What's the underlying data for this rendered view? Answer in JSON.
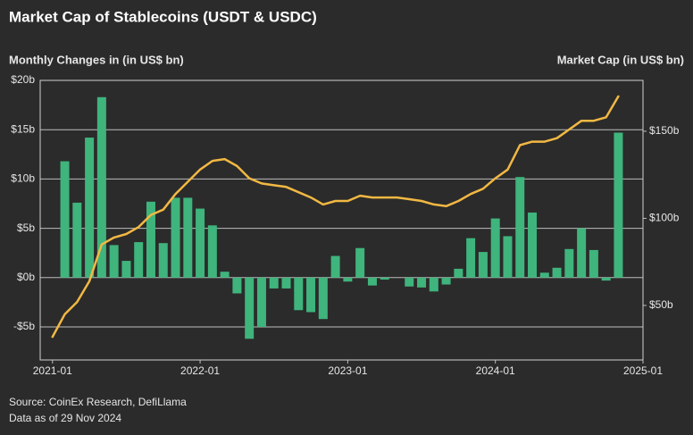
{
  "chart_data": {
    "type": "bar",
    "title": "Market Cap of Stablecoins (USDT & USDC)",
    "y_label": "Monthly Changes in (in US$ bn)",
    "y2_label": "Market Cap (in US$ bn)",
    "source": "Source: CoinEx Research, DefiLlama",
    "note": "Data as of 29 Nov 2024",
    "x": [
      "2021-01",
      "2021-02",
      "2021-03",
      "2021-04",
      "2021-05",
      "2021-06",
      "2021-07",
      "2021-08",
      "2021-09",
      "2021-10",
      "2021-11",
      "2021-12",
      "2022-01",
      "2022-02",
      "2022-03",
      "2022-04",
      "2022-05",
      "2022-06",
      "2022-07",
      "2022-08",
      "2022-09",
      "2022-10",
      "2022-11",
      "2022-12",
      "2023-01",
      "2023-02",
      "2023-03",
      "2023-04",
      "2023-05",
      "2023-06",
      "2023-07",
      "2023-08",
      "2023-09",
      "2023-10",
      "2023-11",
      "2023-12",
      "2024-01",
      "2024-02",
      "2024-03",
      "2024-04",
      "2024-05",
      "2024-06",
      "2024-07",
      "2024-08",
      "2024-09",
      "2024-10",
      "2024-11"
    ],
    "xlim": [
      "2020-12",
      "2025-01"
    ],
    "xticks": [
      "2021-01",
      "2022-01",
      "2023-01",
      "2024-01",
      "2025-01"
    ],
    "ylim": [
      -8.35,
      20
    ],
    "yticks": [
      {
        "value": 20,
        "label": "$20b"
      },
      {
        "value": 15,
        "label": "$15b"
      },
      {
        "value": 10,
        "label": "$10b"
      },
      {
        "value": 5,
        "label": "$5b"
      },
      {
        "value": 0,
        "label": "$0b"
      },
      {
        "value": -5,
        "label": "-$5b"
      }
    ],
    "y2lim": [
      18.7,
      179.2
    ],
    "y2ticks": [
      {
        "value": 150,
        "label": "$150b"
      },
      {
        "value": 100,
        "label": "$100b"
      },
      {
        "value": 50,
        "label": "$50b"
      }
    ],
    "grid": true,
    "series": [
      {
        "type": "bar",
        "color": "#3fb47c",
        "values": [
          null,
          11.8,
          7.6,
          14.2,
          18.3,
          3.3,
          1.7,
          3.6,
          7.7,
          3.5,
          8.1,
          8.1,
          7.0,
          5.3,
          0.6,
          -1.6,
          -6.2,
          -5.0,
          -1.1,
          -1.1,
          -3.3,
          -3.5,
          -4.2,
          2.2,
          -0.4,
          3.0,
          -0.8,
          -0.2,
          0,
          -0.9,
          -1.0,
          -1.4,
          -0.7,
          0.9,
          4.0,
          2.6,
          6.0,
          4.2,
          10.2,
          6.6,
          0.5,
          1.0,
          2.9,
          5.0,
          2.8,
          -0.3,
          14.7
        ]
      },
      {
        "type": "line",
        "axis": "y2",
        "color": "#f2b843",
        "values": [
          32,
          45,
          52,
          64,
          85,
          89,
          91,
          95,
          102,
          105,
          114,
          121,
          128,
          133,
          134,
          130,
          123,
          120,
          119,
          118,
          115,
          112,
          108,
          110,
          110,
          113,
          112,
          112,
          112,
          111,
          110,
          108,
          107,
          110,
          114,
          117,
          123,
          128,
          142,
          144,
          144,
          146,
          151,
          156,
          156,
          158,
          170
        ]
      }
    ]
  }
}
